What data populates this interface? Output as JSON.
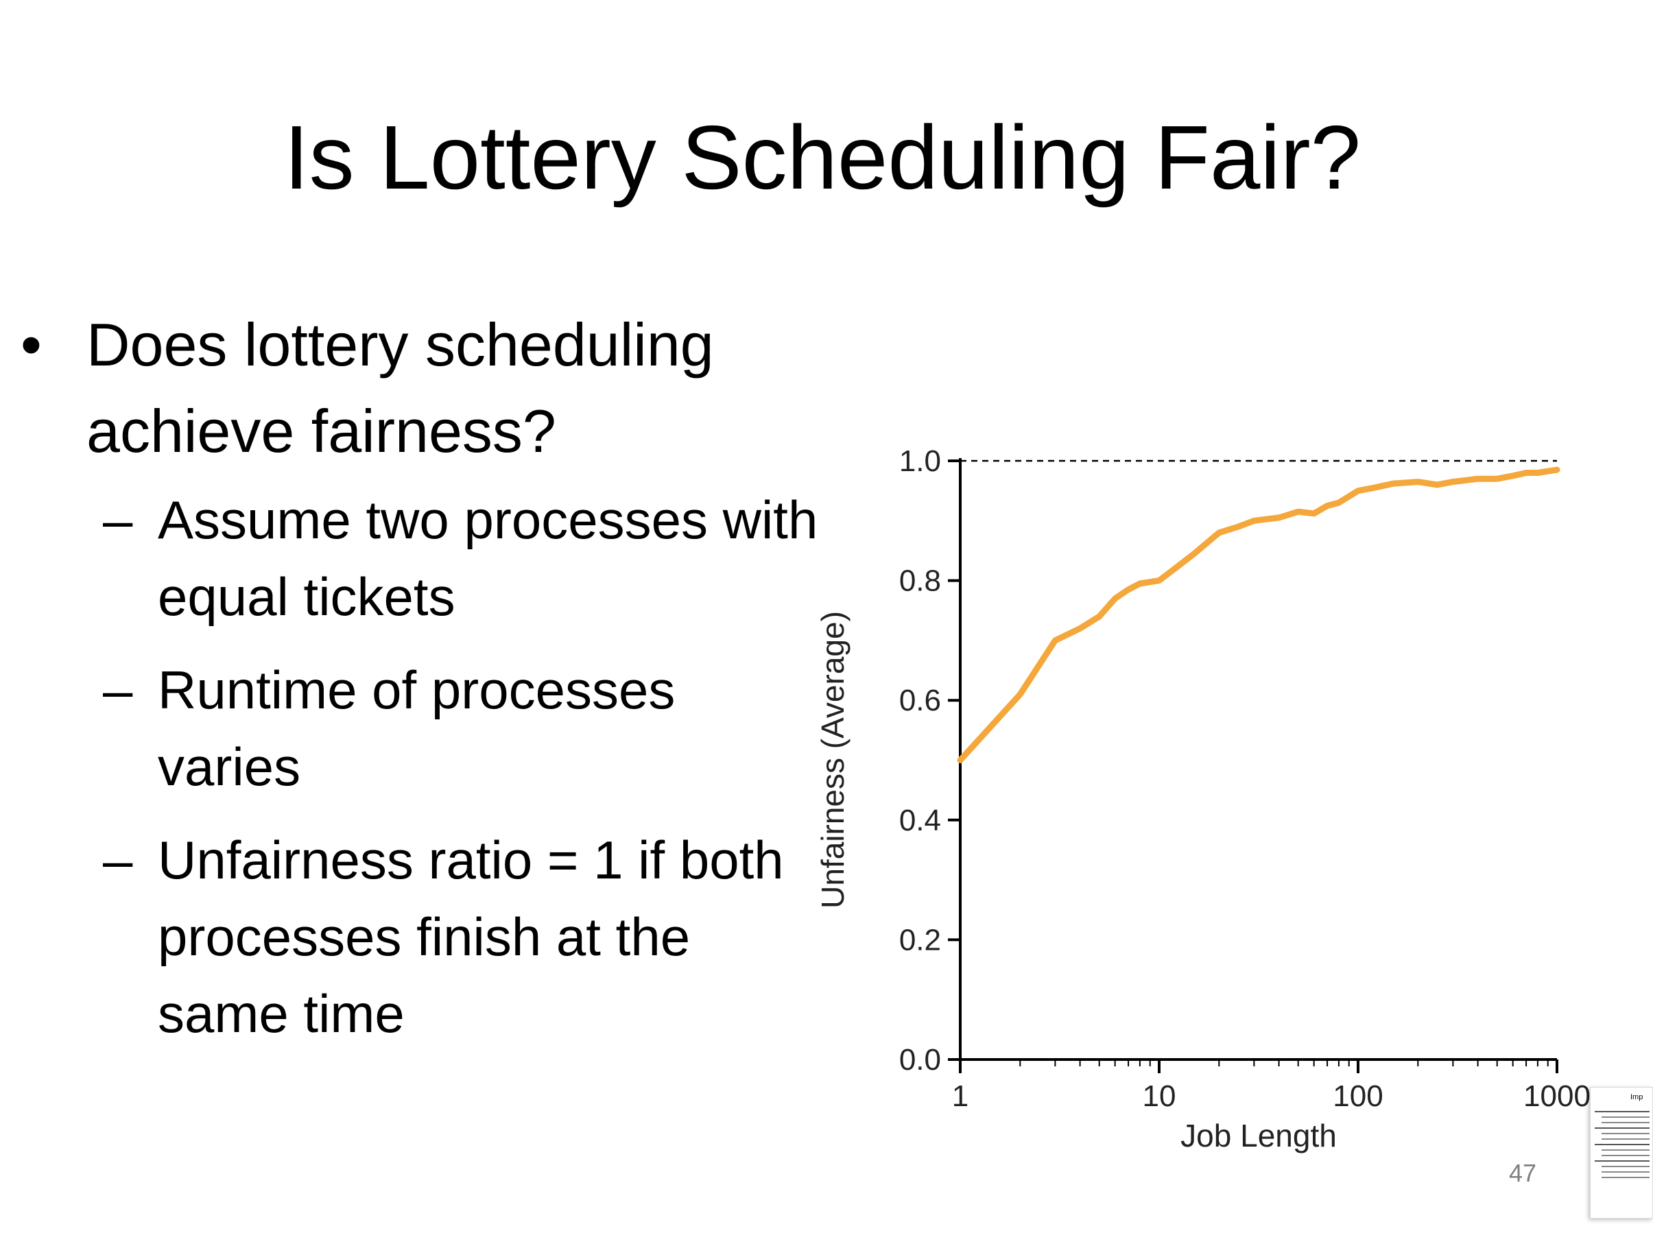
{
  "slide": {
    "title": "Is Lottery Scheduling Fair?",
    "bullet": "Does lottery scheduling achieve fairness?",
    "bullet_symbol": "•",
    "sub_symbol": "–",
    "sub_bullets": [
      "Assume two processes with equal tickets",
      "Runtime of processes varies",
      "Unfairness ratio = 1 if both processes finish at the same time"
    ],
    "page_number": "47",
    "thumbnail_title": "Imp"
  },
  "chart_data": {
    "type": "line",
    "xlabel": "Job Length",
    "ylabel": "Unfairness (Average)",
    "x_scale": "log",
    "xlim": [
      1,
      1000
    ],
    "ylim": [
      0.0,
      1.0
    ],
    "x_ticks": [
      "1",
      "10",
      "100",
      "1000"
    ],
    "y_ticks": [
      "0.0",
      "0.2",
      "0.4",
      "0.6",
      "0.8",
      "1.0"
    ],
    "reference_line": 1.0,
    "color": "#f4a73b",
    "x": [
      1,
      2,
      3,
      4,
      5,
      6,
      7,
      8,
      10,
      12,
      15,
      20,
      25,
      30,
      40,
      50,
      60,
      70,
      80,
      100,
      120,
      150,
      200,
      250,
      300,
      400,
      500,
      600,
      700,
      800,
      1000
    ],
    "y": [
      0.5,
      0.61,
      0.7,
      0.72,
      0.74,
      0.77,
      0.785,
      0.795,
      0.8,
      0.82,
      0.845,
      0.88,
      0.89,
      0.9,
      0.905,
      0.915,
      0.912,
      0.925,
      0.93,
      0.95,
      0.955,
      0.962,
      0.965,
      0.96,
      0.965,
      0.97,
      0.97,
      0.975,
      0.98,
      0.98,
      0.985
    ]
  }
}
